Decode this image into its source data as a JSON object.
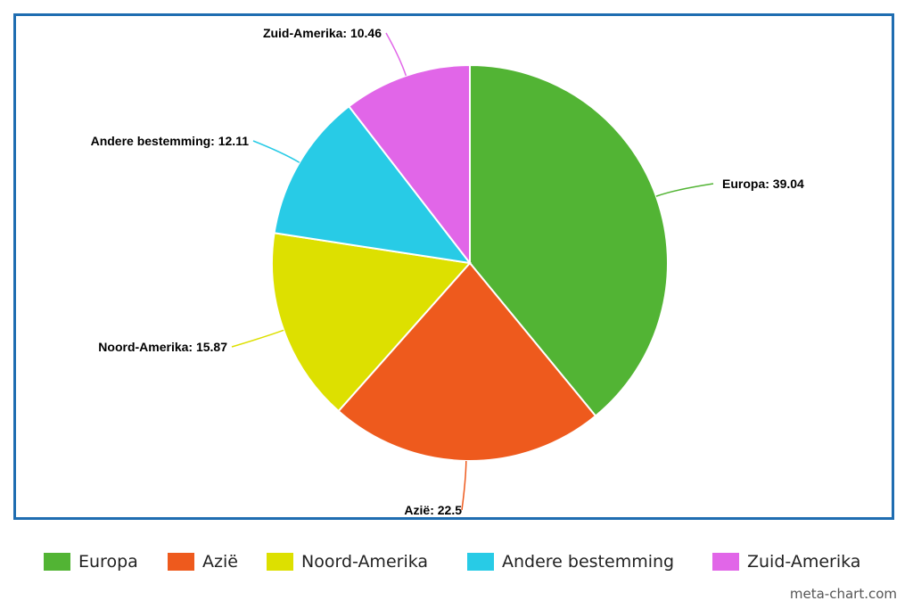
{
  "chart_data": {
    "type": "pie",
    "categories": [
      "Europa",
      "Azië",
      "Noord-Amerika",
      "Andere bestemming",
      "Zuid-Amerika"
    ],
    "values": [
      39.04,
      22.5,
      15.87,
      12.11,
      10.46
    ],
    "labels": [
      "Europa: 39.04",
      "Azië: 22.5",
      "Noord-Amerika: 15.87",
      "Andere bestemming: 12.11",
      "Zuid-Amerika: 10.46"
    ],
    "colors": [
      "#52b434",
      "#ee5a1d",
      "#dde000",
      "#28cbe6",
      "#e166e8"
    ],
    "legend_position": "bottom",
    "start_angle": "12 o'clock, clockwise"
  },
  "legend": {
    "items": [
      {
        "label": "Europa",
        "color": "#52b434"
      },
      {
        "label": "Azië",
        "color": "#ee5a1d"
      },
      {
        "label": "Noord-Amerika",
        "color": "#dde000"
      },
      {
        "label": "Andere bestemming",
        "color": "#28cbe6"
      },
      {
        "label": "Zuid-Amerika",
        "color": "#e166e8"
      }
    ]
  },
  "watermark": "meta-chart.com",
  "frame_color": "#1f6db1"
}
